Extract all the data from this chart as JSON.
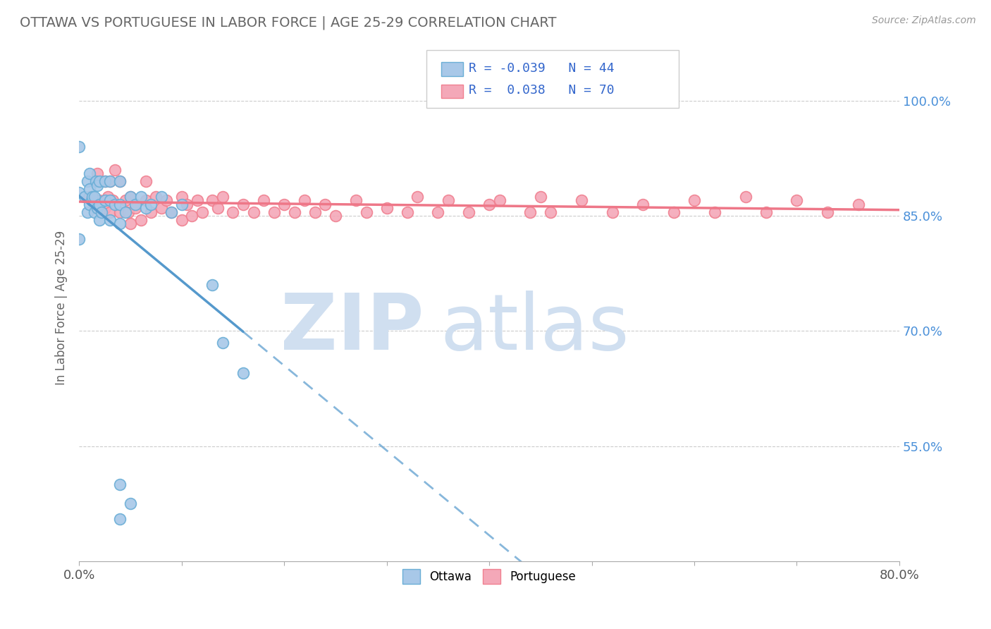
{
  "title": "OTTAWA VS PORTUGUESE IN LABOR FORCE | AGE 25-29 CORRELATION CHART",
  "source_text": "Source: ZipAtlas.com",
  "ylabel": "In Labor Force | Age 25-29",
  "xlim": [
    0.0,
    0.8
  ],
  "ylim": [
    0.4,
    1.06
  ],
  "ytick_values": [
    0.55,
    0.7,
    0.85,
    1.0
  ],
  "legend_r1": "-0.039",
  "legend_n1": "44",
  "legend_r2": "0.038",
  "legend_n2": "70",
  "ottawa_color": "#a8c8e8",
  "portuguese_color": "#f4a8b8",
  "ottawa_edge_color": "#6aaed6",
  "portuguese_edge_color": "#f08090",
  "ottawa_line_color": "#5599cc",
  "portuguese_line_color": "#ee7788",
  "watermark_color": "#d0dff0",
  "background_color": "#ffffff",
  "ottawa_scatter_x": [
    0.0,
    0.0,
    0.0,
    0.005,
    0.008,
    0.008,
    0.01,
    0.01,
    0.01,
    0.012,
    0.013,
    0.015,
    0.015,
    0.016,
    0.018,
    0.018,
    0.02,
    0.02,
    0.02,
    0.022,
    0.025,
    0.025,
    0.03,
    0.03,
    0.03,
    0.035,
    0.04,
    0.04,
    0.04,
    0.045,
    0.05,
    0.055,
    0.06,
    0.065,
    0.07,
    0.08,
    0.09,
    0.1,
    0.13,
    0.14,
    0.16,
    0.04,
    0.05,
    0.04
  ],
  "ottawa_scatter_y": [
    0.82,
    0.88,
    0.94,
    0.875,
    0.855,
    0.895,
    0.865,
    0.885,
    0.905,
    0.87,
    0.875,
    0.855,
    0.875,
    0.895,
    0.86,
    0.89,
    0.845,
    0.865,
    0.895,
    0.855,
    0.87,
    0.895,
    0.845,
    0.87,
    0.895,
    0.865,
    0.84,
    0.865,
    0.895,
    0.855,
    0.875,
    0.865,
    0.875,
    0.86,
    0.865,
    0.875,
    0.855,
    0.865,
    0.76,
    0.685,
    0.645,
    0.5,
    0.475,
    0.455
  ],
  "portuguese_scatter_x": [
    0.01,
    0.015,
    0.018,
    0.02,
    0.025,
    0.025,
    0.028,
    0.03,
    0.03,
    0.033,
    0.035,
    0.04,
    0.04,
    0.045,
    0.048,
    0.05,
    0.05,
    0.055,
    0.06,
    0.065,
    0.065,
    0.07,
    0.075,
    0.08,
    0.085,
    0.09,
    0.1,
    0.1,
    0.105,
    0.11,
    0.115,
    0.12,
    0.13,
    0.135,
    0.14,
    0.15,
    0.16,
    0.17,
    0.18,
    0.19,
    0.2,
    0.21,
    0.22,
    0.23,
    0.24,
    0.25,
    0.27,
    0.28,
    0.3,
    0.32,
    0.33,
    0.35,
    0.36,
    0.38,
    0.4,
    0.41,
    0.44,
    0.45,
    0.46,
    0.49,
    0.52,
    0.55,
    0.58,
    0.6,
    0.62,
    0.65,
    0.67,
    0.7,
    0.73,
    0.76
  ],
  "portuguese_scatter_y": [
    0.875,
    0.86,
    0.905,
    0.87,
    0.86,
    0.895,
    0.875,
    0.855,
    0.895,
    0.87,
    0.91,
    0.855,
    0.895,
    0.87,
    0.855,
    0.84,
    0.875,
    0.86,
    0.845,
    0.87,
    0.895,
    0.855,
    0.875,
    0.86,
    0.87,
    0.855,
    0.845,
    0.875,
    0.865,
    0.85,
    0.87,
    0.855,
    0.87,
    0.86,
    0.875,
    0.855,
    0.865,
    0.855,
    0.87,
    0.855,
    0.865,
    0.855,
    0.87,
    0.855,
    0.865,
    0.85,
    0.87,
    0.855,
    0.86,
    0.855,
    0.875,
    0.855,
    0.87,
    0.855,
    0.865,
    0.87,
    0.855,
    0.875,
    0.855,
    0.87,
    0.855,
    0.865,
    0.855,
    0.87,
    0.855,
    0.875,
    0.855,
    0.87,
    0.855,
    0.865
  ]
}
